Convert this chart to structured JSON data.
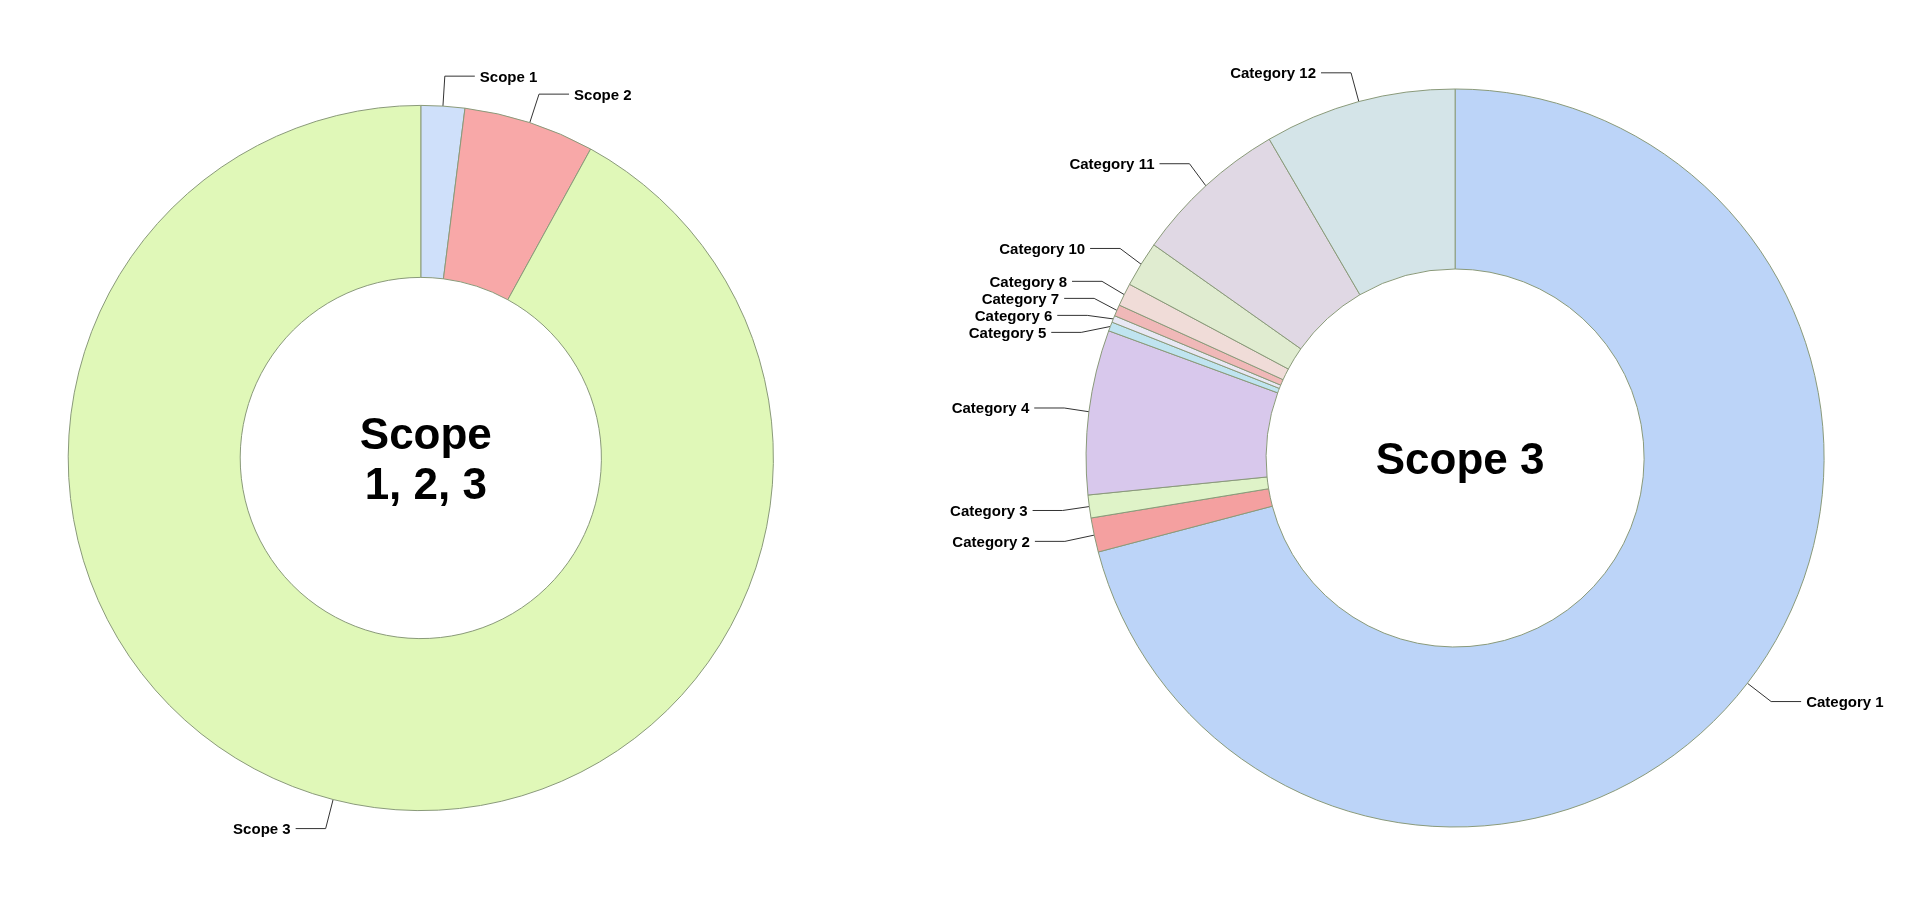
{
  "chart_data": [
    {
      "type": "donut",
      "title": "Scope\n1, 2, 3",
      "categories": [
        "Scope 1",
        "Scope 2",
        "Scope 3"
      ],
      "values": [
        2,
        6,
        92
      ],
      "colors": [
        "#cfe0fa",
        "#f8a8a8",
        "#e0f8b8"
      ]
    },
    {
      "type": "donut",
      "title": "Scope 3",
      "categories": [
        "Category 1",
        "Category 2",
        "Category 3",
        "Category 4",
        "Category 5",
        "Category 6",
        "Category 7",
        "Category 8",
        "Category 10",
        "Category 11",
        "Category 12"
      ],
      "values": [
        70.9,
        1.5,
        1.0,
        7.2,
        0.4,
        0.3,
        0.5,
        1.0,
        2.0,
        6.8,
        8.4
      ],
      "colors": [
        "#bcd4f8",
        "#f4a0a0",
        "#dff3c8",
        "#d8c8ec",
        "#bfe4f0",
        "#e8e8f4",
        "#f0b8b8",
        "#f0dcd8",
        "#e0ecd0",
        "#e0d8e4",
        "#d4e4e8"
      ]
    }
  ]
}
